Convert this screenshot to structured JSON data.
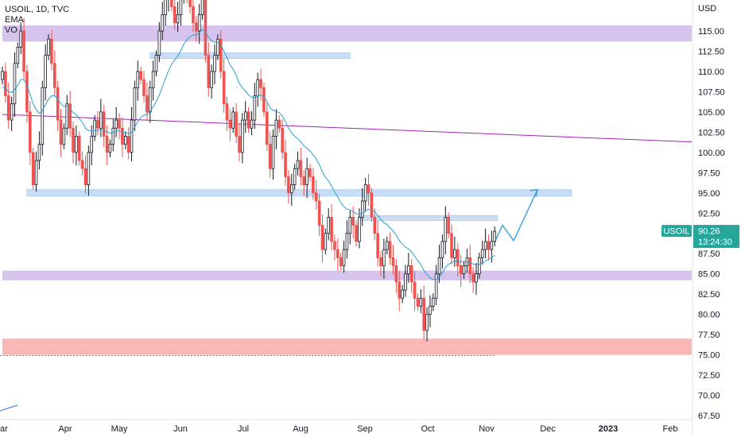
{
  "legend": {
    "symbol_line": "USOIL, 1D, TVC",
    "ema_label": "EMA",
    "vo_label": "VO"
  },
  "colors": {
    "up": "#ffffff",
    "down": "#ef5350",
    "wick": "#131722",
    "ema": "#2a9fd6",
    "zone_purple": "#d6c4ec",
    "zone_blue": "#c9ddf5",
    "zone_red": "#f9b7b7",
    "trendline": "#9c27b0",
    "arrow": "#42a5d8",
    "price_tag": "#26a69a"
  },
  "chart_data": {
    "type": "candlestick",
    "title": "USOIL, 1D, TVC",
    "currency": "USD",
    "y_axis_label": "USD",
    "ylim": [
      67.5,
      120.5
    ],
    "y_ticks": [
      "115.00",
      "112.50",
      "110.00",
      "107.50",
      "105.00",
      "102.50",
      "100.00",
      "97.50",
      "95.00",
      "92.50",
      "90.00",
      "87.50",
      "85.00",
      "82.50",
      "80.00",
      "77.50",
      "75.00",
      "72.50",
      "70.00",
      "67.50"
    ],
    "x_ticks": [
      {
        "label": "Apr",
        "bold": false
      },
      {
        "label": "May",
        "bold": false
      },
      {
        "label": "Jun",
        "bold": false
      },
      {
        "label": "Jul",
        "bold": false
      },
      {
        "label": "Aug",
        "bold": false
      },
      {
        "label": "Sep",
        "bold": false
      },
      {
        "label": "Oct",
        "bold": false
      },
      {
        "label": "Nov",
        "bold": false
      },
      {
        "label": "Dec",
        "bold": false
      },
      {
        "label": "2023",
        "bold": true
      },
      {
        "label": "Feb",
        "bold": false
      }
    ],
    "x_edge_label": "ar",
    "last_price": {
      "symbol": "USOIL",
      "price": "90.26",
      "countdown": "13:24:30"
    },
    "closes": [
      110,
      107,
      104,
      106,
      111,
      113,
      115,
      110,
      105,
      100,
      96,
      99,
      101,
      108,
      112,
      114,
      111,
      108,
      104,
      101,
      103,
      106,
      103,
      100,
      102,
      99,
      98,
      96,
      100,
      102,
      104,
      103,
      105,
      102,
      100,
      101,
      103,
      104,
      103,
      101,
      102,
      100,
      104,
      108,
      110,
      109,
      107,
      105,
      108,
      110,
      112,
      115,
      117,
      119,
      120,
      118,
      116,
      117,
      120,
      121,
      119,
      118,
      116,
      115,
      117,
      119,
      112,
      108,
      110,
      112,
      114,
      110,
      106,
      104,
      103,
      105,
      102,
      100,
      104,
      105,
      103,
      104,
      107,
      109,
      108,
      105,
      101,
      98,
      102,
      104,
      103,
      100,
      97,
      95,
      96,
      98,
      99,
      97,
      96,
      98,
      97,
      95,
      94,
      91,
      88,
      90,
      92,
      89,
      88,
      87,
      86,
      88,
      90,
      92,
      91,
      89,
      92,
      94,
      96,
      95,
      92,
      90,
      87,
      86,
      88,
      89,
      87,
      86,
      84,
      82,
      83,
      85,
      86,
      84,
      82,
      81,
      82,
      78,
      80,
      81,
      82,
      85,
      87,
      89,
      92,
      90,
      87,
      88,
      86,
      85,
      86,
      87,
      85,
      84,
      85,
      87,
      88,
      89,
      88,
      89,
      90.26
    ],
    "emas": [
      108,
      108,
      107.5,
      107.4,
      107.8,
      108.3,
      109,
      109,
      108.3,
      107.2,
      106,
      105.3,
      104.8,
      105.2,
      105.9,
      106.6,
      107,
      107,
      106.6,
      106,
      105.7,
      105.7,
      105.4,
      104.9,
      104.7,
      104.2,
      103.7,
      103,
      102.7,
      102.6,
      102.7,
      102.7,
      102.9,
      102.8,
      102.5,
      102.4,
      102.5,
      102.6,
      102.7,
      102.5,
      102.5,
      102.3,
      102.5,
      103.1,
      103.8,
      104.3,
      104.6,
      104.7,
      105.1,
      105.6,
      106.3,
      107.1,
      108.1,
      109.1,
      110.1,
      110.9,
      111.4,
      111.9,
      112.6,
      113.4,
      113.9,
      114.3,
      114.5,
      114.5,
      114.8,
      115.2,
      114.9,
      114.2,
      113.8,
      113.6,
      113.6,
      113.3,
      112.5,
      111.7,
      110.8,
      110.3,
      109.5,
      108.5,
      108,
      107.6,
      107.1,
      106.8,
      106.8,
      107,
      107.1,
      106.9,
      106.3,
      105.5,
      105.2,
      105.1,
      104.9,
      104.5,
      103.8,
      103,
      102.4,
      102,
      101.7,
      101.3,
      100.8,
      100.5,
      100.2,
      99.7,
      99.2,
      98.5,
      97.6,
      96.9,
      96.5,
      95.8,
      95.1,
      94.5,
      93.8,
      93.3,
      93,
      92.9,
      92.7,
      92.4,
      92.4,
      92.5,
      92.8,
      93,
      92.9,
      92.7,
      92.2,
      91.7,
      91.3,
      91.1,
      90.7,
      90.3,
      89.8,
      89.1,
      88.7,
      88.3,
      88.1,
      87.7,
      87.2,
      86.6,
      86.2,
      85.4,
      84.9,
      84.5,
      84.3,
      84.3,
      84.6,
      85.1,
      85.8,
      86.2,
      86.4,
      86.6,
      86.6,
      86.5,
      86.5,
      86.5,
      86.4,
      86.2,
      86.1,
      86.2,
      86.3,
      86.6,
      86.8,
      87,
      87.3
    ]
  },
  "levels": {
    "zones": [
      {
        "kind": "purple",
        "top": 115.7,
        "bottom": 113.7,
        "from": 0,
        "to": "end"
      },
      {
        "kind": "blue",
        "top": 112.3,
        "bottom": 111.6,
        "from": 48,
        "to": 113
      },
      {
        "kind": "blue",
        "top": 95.4,
        "bottom": 94.6,
        "from": 8,
        "to": 185
      },
      {
        "kind": "blue",
        "top": 92.2,
        "bottom": 91.6,
        "from": 116,
        "to": 161
      },
      {
        "kind": "purple",
        "top": 85.4,
        "bottom": 84.2,
        "from": 0,
        "to": "end"
      },
      {
        "kind": "red",
        "top": 77.0,
        "bottom": 75.0,
        "from": 0,
        "to": "end"
      }
    ],
    "trendline": {
      "p1": {
        "i": 0,
        "v": 104.7
      },
      "p2": {
        "i": "end",
        "v": 101.3
      }
    },
    "dashed_level": 75.3,
    "projection": [
      88.9,
      91.0,
      89.1,
      95.4
    ]
  }
}
